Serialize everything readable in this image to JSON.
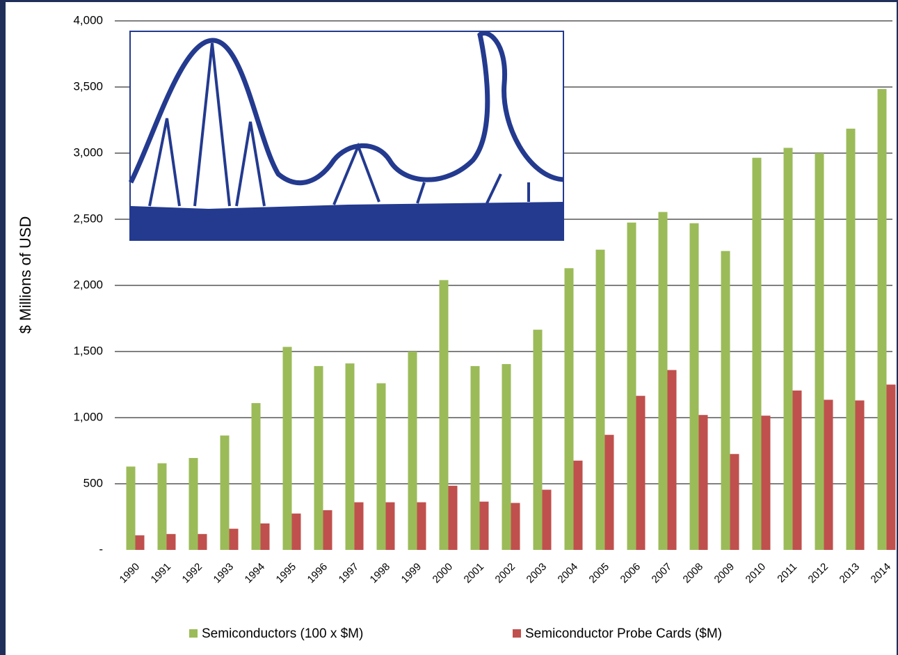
{
  "chart_data": {
    "type": "bar",
    "y_label": "$ Millions of USD",
    "categories": [
      "1990",
      "1991",
      "1992",
      "1993",
      "1994",
      "1995",
      "1996",
      "1997",
      "1998",
      "1999",
      "2000",
      "2001",
      "2002",
      "2003",
      "2004",
      "2005",
      "2006",
      "2007",
      "2008",
      "2009",
      "2010",
      "2011",
      "2012",
      "2013",
      "2014"
    ],
    "series": [
      {
        "name": "Semiconductors (100 x $M)",
        "color": "#9bbb59",
        "values": [
          630,
          655,
          695,
          865,
          1110,
          1535,
          1390,
          1410,
          1260,
          1500,
          2040,
          1390,
          1405,
          1665,
          2130,
          2270,
          2475,
          2555,
          2470,
          2260,
          2965,
          3040,
          3000,
          3185,
          3485
        ]
      },
      {
        "name": "Semiconductor Probe Cards ($M)",
        "color": "#c0504d",
        "values": [
          110,
          120,
          120,
          160,
          200,
          275,
          300,
          360,
          360,
          360,
          485,
          365,
          355,
          455,
          675,
          870,
          1165,
          1360,
          1020,
          725,
          1015,
          1205,
          1135,
          1130,
          1250
        ]
      }
    ],
    "ylim": [
      0,
      4000
    ],
    "yticks": [
      {
        "value": 0,
        "label": "-"
      },
      500,
      {
        "value": 1000,
        "label": "1,000"
      },
      {
        "value": 1500,
        "label": "1,500"
      },
      {
        "value": 2000,
        "label": "2,000"
      },
      {
        "value": 2500,
        "label": "2,500"
      },
      {
        "value": 3000,
        "label": "3,000"
      },
      {
        "value": 3500,
        "label": "3,500"
      },
      {
        "value": 4000,
        "label": "4,000"
      }
    ],
    "grid": true,
    "legend": "bottom"
  }
}
